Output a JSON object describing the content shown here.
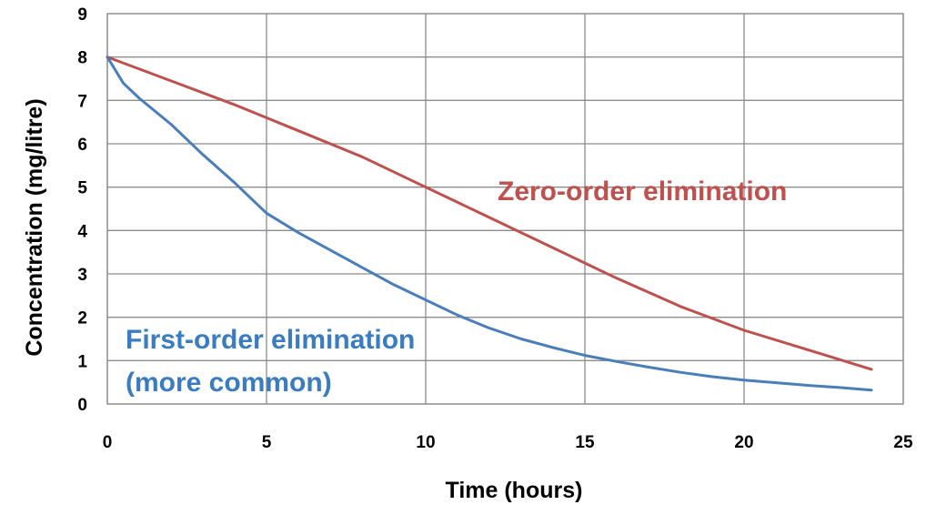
{
  "chart_data": {
    "type": "line",
    "xlabel": "Time (hours)",
    "ylabel": "Concentration (mg/litre)",
    "xlim": [
      0,
      25
    ],
    "ylim": [
      0,
      9
    ],
    "x_ticks": [
      "0",
      "5",
      "10",
      "15",
      "20",
      "25"
    ],
    "y_ticks": [
      "0",
      "1",
      "2",
      "3",
      "4",
      "5",
      "6",
      "7",
      "8",
      "9"
    ],
    "grid": true,
    "series": [
      {
        "id": "zero-order",
        "color": "#c0504d",
        "x": [
          0,
          2,
          4,
          6,
          8,
          10,
          12,
          14,
          16,
          18,
          20,
          22,
          24
        ],
        "y": [
          8.0,
          7.45,
          6.9,
          6.3,
          5.7,
          5.0,
          4.3,
          3.6,
          2.9,
          2.25,
          1.7,
          1.25,
          0.8
        ]
      },
      {
        "id": "first-order",
        "color": "#4a7ebb",
        "x": [
          0,
          0.5,
          1,
          2,
          3,
          4,
          5,
          6,
          7,
          8,
          9,
          10,
          11,
          12,
          13,
          14,
          15,
          16,
          17,
          18,
          19,
          20,
          21,
          22,
          23,
          24
        ],
        "y": [
          8.0,
          7.4,
          7.05,
          6.45,
          5.75,
          5.1,
          4.4,
          3.95,
          3.55,
          3.15,
          2.75,
          2.4,
          2.05,
          1.75,
          1.5,
          1.3,
          1.12,
          0.98,
          0.85,
          0.73,
          0.63,
          0.55,
          0.49,
          0.43,
          0.38,
          0.32
        ]
      }
    ],
    "annotations": [
      {
        "target": "zero-order",
        "lines": [
          "Zero-order elimination"
        ],
        "color": "#c0504d"
      },
      {
        "target": "first-order",
        "lines": [
          "First-order elimination",
          "(more common)"
        ],
        "color": "#3a7cc2"
      }
    ]
  }
}
